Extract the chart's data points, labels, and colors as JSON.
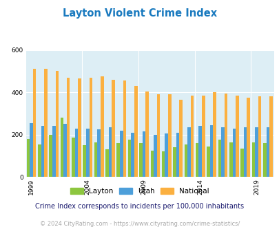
{
  "title": "Layton Violent Crime Index",
  "years": [
    1999,
    2000,
    2001,
    2002,
    2003,
    2004,
    2005,
    2006,
    2007,
    2008,
    2009,
    2010,
    2011,
    2012,
    2013,
    2014,
    2015,
    2016,
    2017,
    2018,
    2019,
    2020
  ],
  "layton": [
    180,
    155,
    200,
    280,
    185,
    150,
    165,
    130,
    160,
    175,
    160,
    125,
    120,
    140,
    155,
    160,
    145,
    175,
    165,
    135,
    165,
    160
  ],
  "utah": [
    255,
    240,
    240,
    250,
    230,
    230,
    225,
    235,
    220,
    210,
    215,
    200,
    205,
    210,
    235,
    240,
    245,
    235,
    230,
    235,
    235,
    235
  ],
  "national": [
    510,
    510,
    500,
    470,
    465,
    470,
    475,
    460,
    455,
    430,
    405,
    390,
    390,
    365,
    385,
    385,
    400,
    395,
    385,
    375,
    380,
    380
  ],
  "bar_colors": {
    "layton": "#8dc63f",
    "utah": "#4d9fda",
    "national": "#fbb040"
  },
  "fig_bg": "#ffffff",
  "plot_bg": "#ddeef5",
  "ylim": [
    0,
    600
  ],
  "yticks": [
    0,
    200,
    400,
    600
  ],
  "xtick_years": [
    1999,
    2004,
    2009,
    2014,
    2019
  ],
  "subtitle": "Crime Index corresponds to incidents per 100,000 inhabitants",
  "footer": "© 2024 CityRating.com - https://www.cityrating.com/crime-statistics/",
  "title_color": "#1a7abf",
  "subtitle_color": "#1a1a6e",
  "footer_color": "#aaaaaa",
  "legend_labels": [
    "Layton",
    "Utah",
    "National"
  ]
}
